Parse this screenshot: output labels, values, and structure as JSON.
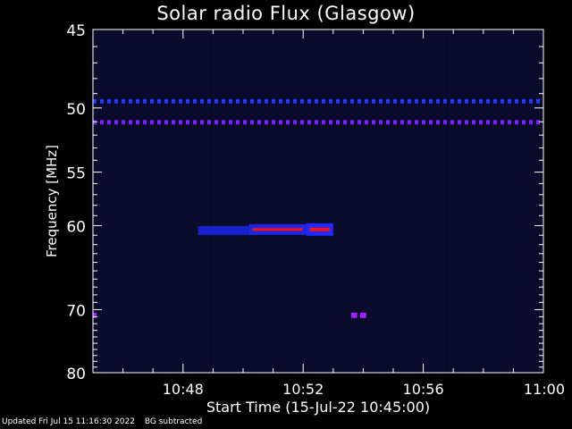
{
  "chart_data": {
    "type": "heatmap",
    "title": "Solar radio Flux (Glasgow)",
    "xlabel": "Start Time (15-Jul-22 10:45:00)",
    "ylabel": "Frequency [MHz]",
    "x_ticks": [
      "10:48",
      "10:52",
      "10:56",
      "11:00"
    ],
    "x_tick_minutes": [
      3,
      7,
      11,
      15
    ],
    "xlim_minutes": [
      0,
      15
    ],
    "y_ticks": [
      45,
      50,
      55,
      60,
      70,
      80
    ],
    "ylim": [
      45,
      80
    ],
    "y_scale": "reciprocal",
    "colors": {
      "background": "#000000",
      "low": "#0a0a2a",
      "mid": "#1e2aff",
      "high": "#ff1010",
      "line": "#6a1aff"
    },
    "features": [
      {
        "type": "line",
        "freq": 49.5,
        "t_start": 0,
        "t_end": 15,
        "color": "#1e3cff",
        "dashed": true
      },
      {
        "type": "line",
        "freq": 51.0,
        "t_start": 0,
        "t_end": 15,
        "color": "#7a20ff",
        "dashed": true
      },
      {
        "type": "burst",
        "freq": 60.5,
        "t_start": 3.5,
        "t_end": 5.2,
        "intensity": 0.5
      },
      {
        "type": "burst",
        "freq": 60.4,
        "t_start": 5.2,
        "t_end": 7.1,
        "intensity": 0.75
      },
      {
        "type": "burst",
        "freq": 60.4,
        "t_start": 7.1,
        "t_end": 8.0,
        "intensity": 1.0
      },
      {
        "type": "spot",
        "freq": 70.8,
        "t_start": 0,
        "t_end": 0.1,
        "color": "#a020ff"
      },
      {
        "type": "spot",
        "freq": 70.8,
        "t_start": 8.6,
        "t_end": 8.8,
        "color": "#a020ff"
      },
      {
        "type": "spot",
        "freq": 70.8,
        "t_start": 8.9,
        "t_end": 9.1,
        "color": "#a020ff"
      }
    ]
  },
  "footer": {
    "updated": "Updated Fri Jul 15 11:16:30 2022",
    "note": "BG subtracted"
  }
}
